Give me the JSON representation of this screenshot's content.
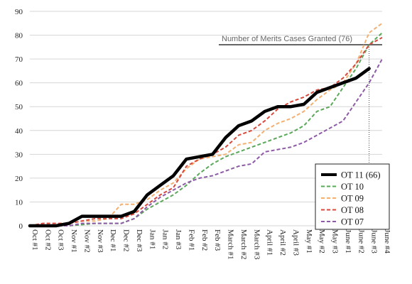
{
  "chart_data": {
    "type": "line",
    "categories": [
      "Oct #1",
      "Oct #2",
      "Oct #3",
      "Nov #1",
      "Nov #2",
      "Nov #3",
      "Dec #1",
      "Dec #2",
      "Dec #3",
      "Jan #1",
      "Jan #2",
      "Jan #3",
      "Feb #1",
      "Feb #2",
      "Feb #3",
      "March #1",
      "March #2",
      "March #3",
      "April #1",
      "April #2",
      "April #3",
      "May #1",
      "May #2",
      "May #3",
      "June #1",
      "June #2",
      "June #3",
      "June #4"
    ],
    "ylim": [
      0,
      90
    ],
    "yticks": [
      0,
      10,
      20,
      30,
      40,
      50,
      60,
      70,
      80,
      90
    ],
    "grid": true,
    "legend_position": "bottom-right",
    "reference_line": {
      "label": "Number of Merits Cases Granted (76)",
      "value": 76
    },
    "marker_category": "June #3",
    "series": [
      {
        "name": "OT 11 (66)",
        "color": "#000000",
        "style": "solid",
        "values": [
          0,
          0,
          0,
          1,
          4,
          4,
          4,
          4,
          6,
          13,
          17,
          21,
          28,
          29,
          30,
          37,
          42,
          44,
          48,
          50,
          50,
          51,
          56,
          58,
          60,
          62,
          66,
          null
        ]
      },
      {
        "name": "OT 10",
        "color": "#5aa85a",
        "style": "dashed",
        "values": [
          0,
          0,
          0,
          0,
          0.5,
          1,
          1,
          1,
          3,
          7,
          10,
          13,
          17,
          22,
          26,
          29,
          31,
          33,
          35,
          37,
          39,
          42,
          48,
          50,
          58,
          66,
          76,
          81
        ]
      },
      {
        "name": "OT 09",
        "color": "#f2b072",
        "style": "dashed",
        "values": [
          0,
          0,
          0,
          1,
          2,
          2,
          3,
          9,
          9,
          11,
          15,
          18,
          24,
          28,
          29,
          30,
          34,
          35,
          40,
          43,
          45,
          48,
          53,
          57,
          60,
          68,
          81,
          85
        ]
      },
      {
        "name": "OT 08",
        "color": "#d64a3e",
        "style": "dashed",
        "values": [
          0,
          1,
          1,
          1,
          2,
          3,
          3,
          3,
          5,
          9,
          13,
          16,
          25,
          28,
          30,
          33,
          38,
          40,
          44,
          49,
          52,
          54,
          57,
          58,
          62,
          68,
          76,
          79
        ]
      },
      {
        "name": "OT 07",
        "color": "#8e5ba6",
        "style": "dashed",
        "values": [
          0,
          0,
          0,
          0,
          1,
          1,
          1,
          1,
          3,
          8,
          12,
          15,
          18,
          20,
          21,
          23,
          25,
          26,
          31,
          32,
          33,
          35,
          38,
          41,
          44,
          52,
          60,
          70
        ]
      }
    ]
  }
}
